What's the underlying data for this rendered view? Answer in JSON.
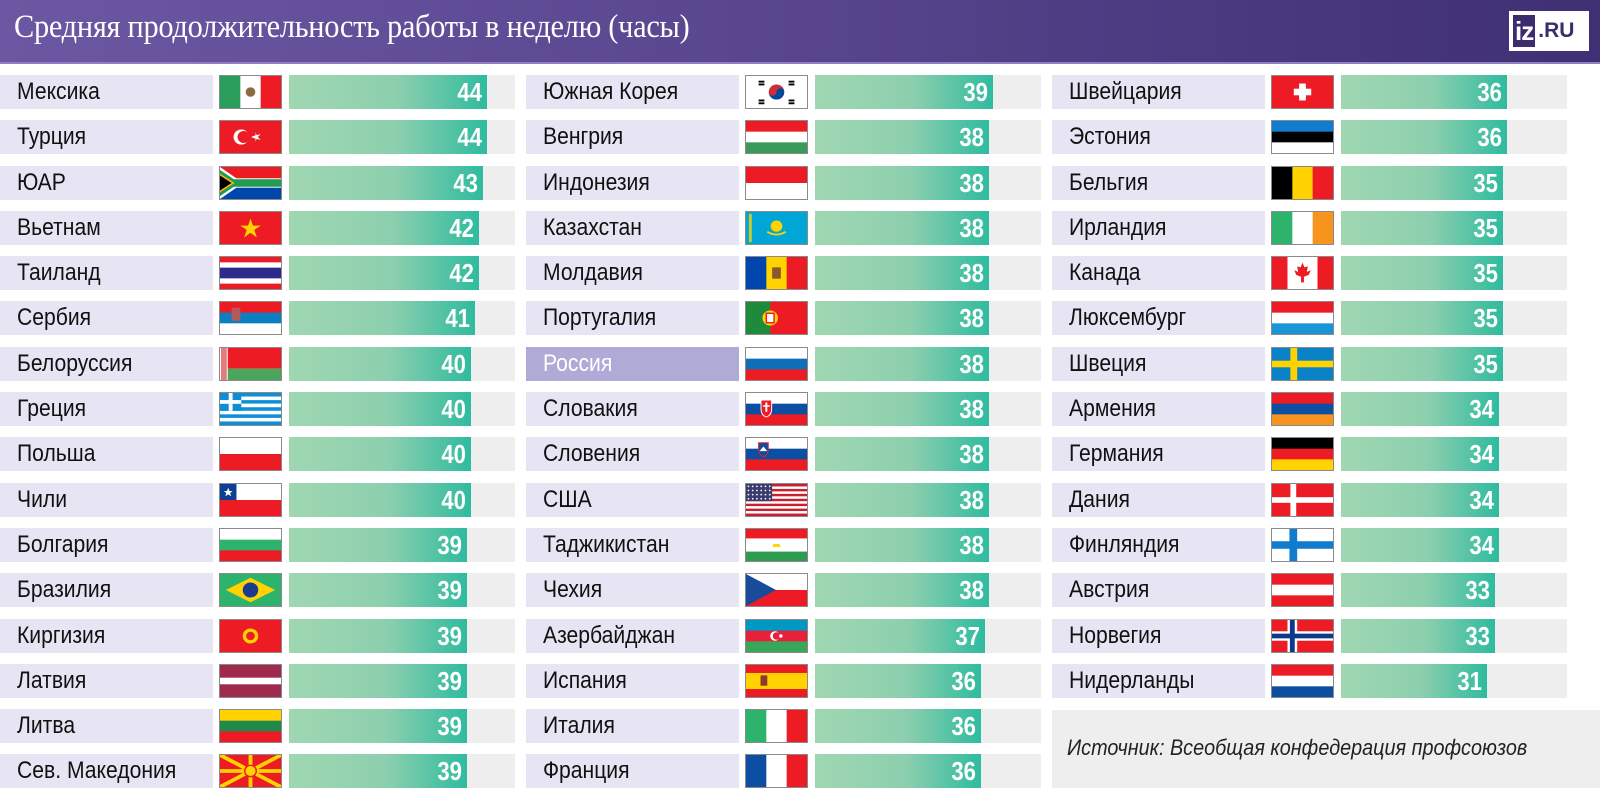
{
  "header": {
    "title": "Средняя продолжительность работы в неделю (часы)",
    "logo_iz": "iz",
    "logo_ru": ".RU"
  },
  "source": "Источник: Всеобщая конфедерация профсоюзов",
  "colors": {
    "header_bg": "#5a4790",
    "label_bg": "#e7e5f3",
    "highlight_bg": "#b0aad6",
    "bar_start": "#a0d7b2",
    "bar_end": "#2fbb9f",
    "track_bg": "#eeeeee"
  },
  "chart_data": {
    "type": "bar",
    "title": "Средняя продолжительность работы в неделю (часы)",
    "orientation": "horizontal",
    "xlabel": "",
    "ylabel": "часы",
    "highlight": "Россия",
    "source": "Источник: Всеобщая конфедерация профсоюзов",
    "categories": [
      "Мексика",
      "Турция",
      "ЮАР",
      "Вьетнам",
      "Таиланд",
      "Сербия",
      "Белоруссия",
      "Греция",
      "Польша",
      "Чили",
      "Болгария",
      "Бразилия",
      "Киргизия",
      "Латвия",
      "Литва",
      "Сев. Македония",
      "Южная Корея",
      "Венгрия",
      "Индонезия",
      "Казахстан",
      "Молдавия",
      "Португалия",
      "Россия",
      "Словакия",
      "Словения",
      "США",
      "Таджикистан",
      "Чехия",
      "Азербайджан",
      "Испания",
      "Италия",
      "Франция",
      "Швейцария",
      "Эстония",
      "Бельгия",
      "Ирландия",
      "Канада",
      "Люксембург",
      "Швеция",
      "Армения",
      "Германия",
      "Дания",
      "Финляндия",
      "Австрия",
      "Норвегия",
      "Нидерланды"
    ],
    "values": [
      44,
      44,
      43,
      42,
      42,
      41,
      40,
      40,
      40,
      40,
      39,
      39,
      39,
      39,
      39,
      39,
      39,
      38,
      38,
      38,
      38,
      38,
      38,
      38,
      38,
      38,
      38,
      38,
      37,
      36,
      36,
      36,
      36,
      36,
      35,
      35,
      35,
      35,
      35,
      34,
      34,
      34,
      34,
      33,
      33,
      31
    ]
  },
  "columns": [
    {
      "rows": [
        {
          "name": "Мексика",
          "value": "44",
          "flag": "mx"
        },
        {
          "name": "Турция",
          "value": "44",
          "flag": "tr"
        },
        {
          "name": "ЮАР",
          "value": "43",
          "flag": "za"
        },
        {
          "name": "Вьетнам",
          "value": "42",
          "flag": "vn"
        },
        {
          "name": "Таиланд",
          "value": "42",
          "flag": "th"
        },
        {
          "name": "Сербия",
          "value": "41",
          "flag": "rs"
        },
        {
          "name": "Белоруссия",
          "value": "40",
          "flag": "by"
        },
        {
          "name": "Греция",
          "value": "40",
          "flag": "gr"
        },
        {
          "name": "Польша",
          "value": "40",
          "flag": "pl"
        },
        {
          "name": "Чили",
          "value": "40",
          "flag": "cl"
        },
        {
          "name": "Болгария",
          "value": "39",
          "flag": "bg"
        },
        {
          "name": "Бразилия",
          "value": "39",
          "flag": "br"
        },
        {
          "name": "Киргизия",
          "value": "39",
          "flag": "kg"
        },
        {
          "name": "Латвия",
          "value": "39",
          "flag": "lv"
        },
        {
          "name": "Литва",
          "value": "39",
          "flag": "lt"
        },
        {
          "name": "Сев. Македония",
          "value": "39",
          "flag": "mk"
        }
      ]
    },
    {
      "rows": [
        {
          "name": "Южная Корея",
          "value": "39",
          "flag": "kr"
        },
        {
          "name": "Венгрия",
          "value": "38",
          "flag": "hu"
        },
        {
          "name": "Индонезия",
          "value": "38",
          "flag": "id"
        },
        {
          "name": "Казахстан",
          "value": "38",
          "flag": "kz"
        },
        {
          "name": "Молдавия",
          "value": "38",
          "flag": "md"
        },
        {
          "name": "Португалия",
          "value": "38",
          "flag": "pt"
        },
        {
          "name": "Россия",
          "value": "38",
          "flag": "ru",
          "highlight": true
        },
        {
          "name": "Словакия",
          "value": "38",
          "flag": "sk"
        },
        {
          "name": "Словения",
          "value": "38",
          "flag": "si"
        },
        {
          "name": "США",
          "value": "38",
          "flag": "us"
        },
        {
          "name": "Таджикистан",
          "value": "38",
          "flag": "tj"
        },
        {
          "name": "Чехия",
          "value": "38",
          "flag": "cz"
        },
        {
          "name": "Азербайджан",
          "value": "37",
          "flag": "az"
        },
        {
          "name": "Испания",
          "value": "36",
          "flag": "es"
        },
        {
          "name": "Италия",
          "value": "36",
          "flag": "it"
        },
        {
          "name": "Франция",
          "value": "36",
          "flag": "fr"
        }
      ]
    },
    {
      "rows": [
        {
          "name": "Швейцария",
          "value": "36",
          "flag": "ch"
        },
        {
          "name": "Эстония",
          "value": "36",
          "flag": "ee"
        },
        {
          "name": "Бельгия",
          "value": "35",
          "flag": "be"
        },
        {
          "name": "Ирландия",
          "value": "35",
          "flag": "ie"
        },
        {
          "name": "Канада",
          "value": "35",
          "flag": "ca"
        },
        {
          "name": "Люксембург",
          "value": "35",
          "flag": "lu"
        },
        {
          "name": "Швеция",
          "value": "35",
          "flag": "se"
        },
        {
          "name": "Армения",
          "value": "34",
          "flag": "am"
        },
        {
          "name": "Германия",
          "value": "34",
          "flag": "de"
        },
        {
          "name": "Дания",
          "value": "34",
          "flag": "dk"
        },
        {
          "name": "Финляндия",
          "value": "34",
          "flag": "fi"
        },
        {
          "name": "Австрия",
          "value": "33",
          "flag": "at"
        },
        {
          "name": "Норвегия",
          "value": "33",
          "flag": "no"
        },
        {
          "name": "Нидерланды",
          "value": "31",
          "flag": "nl"
        }
      ]
    }
  ]
}
